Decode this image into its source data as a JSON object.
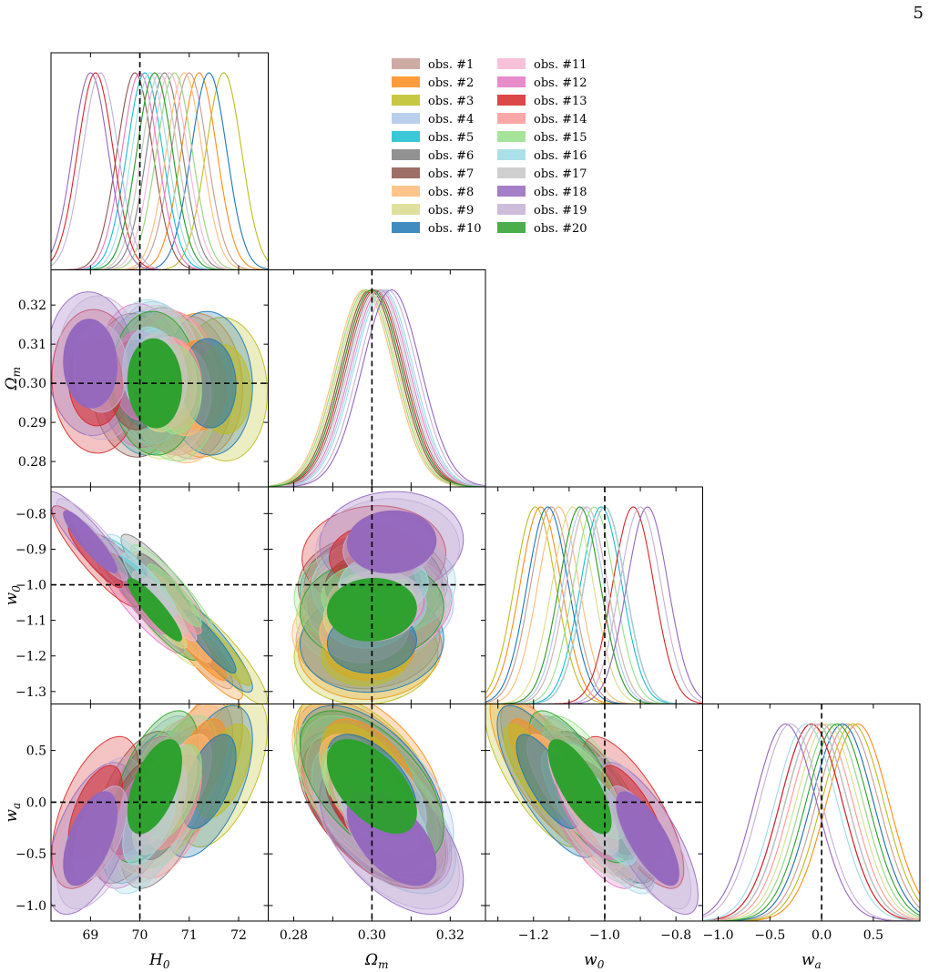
{
  "page_number": "5",
  "legend": {
    "placement": "top-center",
    "entries": [
      {
        "label": "obs. #1",
        "color": "#c49c94"
      },
      {
        "label": "obs. #2",
        "color": "#ff8c1a"
      },
      {
        "label": "obs. #3",
        "color": "#bcbd22"
      },
      {
        "label": "obs. #4",
        "color": "#aec7e8"
      },
      {
        "label": "obs. #5",
        "color": "#17becf"
      },
      {
        "label": "obs. #6",
        "color": "#7f7f7f"
      },
      {
        "label": "obs. #7",
        "color": "#8c564b"
      },
      {
        "label": "obs. #8",
        "color": "#ffbb78"
      },
      {
        "label": "obs. #9",
        "color": "#dbdb8d"
      },
      {
        "label": "obs. #10",
        "color": "#1f77b4"
      },
      {
        "label": "obs. #11",
        "color": "#f7b6d2"
      },
      {
        "label": "obs. #12",
        "color": "#e377c2"
      },
      {
        "label": "obs. #13",
        "color": "#d62728"
      },
      {
        "label": "obs. #14",
        "color": "#ff9896"
      },
      {
        "label": "obs. #15",
        "color": "#98df8a"
      },
      {
        "label": "obs. #16",
        "color": "#9edae5"
      },
      {
        "label": "obs. #17",
        "color": "#c7c7c7"
      },
      {
        "label": "obs. #18",
        "color": "#9467bd"
      },
      {
        "label": "obs. #19",
        "color": "#c5b0d5"
      },
      {
        "label": "obs. #20",
        "color": "#2ca02c"
      }
    ]
  },
  "chart_data": {
    "type": "corner",
    "parameters": [
      {
        "key": "H0",
        "label": "H",
        "sub": "0",
        "range": [
          68.2,
          72.6
        ],
        "ticks": [
          69,
          70,
          71,
          72
        ],
        "tick_labels": [
          "69",
          "70",
          "71",
          "72"
        ],
        "fiducial": 70
      },
      {
        "key": "Om",
        "label": "Ω",
        "sub": "m",
        "range": [
          0.2735,
          0.329
        ],
        "ticks": [
          0.28,
          0.29,
          0.3,
          0.31,
          0.32
        ],
        "tick_labels": [
          "0.28",
          "0.29",
          "0.30",
          "0.31",
          "0.32"
        ],
        "bottom_ticks": [
          0.28,
          0.3,
          0.32
        ],
        "bottom_tick_labels": [
          "0.28",
          "0.30",
          "0.32"
        ],
        "fiducial": 0.3
      },
      {
        "key": "w0",
        "label": "w",
        "sub": "0",
        "range": [
          -1.335,
          -0.725
        ],
        "ticks": [
          -1.3,
          -1.2,
          -1.1,
          -1.0,
          -0.9,
          -0.8
        ],
        "tick_labels": [
          "−1.3",
          "−1.2",
          "−1.1",
          "−1.0",
          "−0.9",
          "−0.8"
        ],
        "bottom_ticks": [
          -1.2,
          -1.0,
          -0.8
        ],
        "bottom_tick_labels": [
          "−1.2",
          "−1.0",
          "−0.8"
        ],
        "fiducial": -1.0
      },
      {
        "key": "wa",
        "label": "w",
        "sub": "a",
        "range": [
          -1.15,
          0.95
        ],
        "ticks": [
          -1.0,
          -0.5,
          0.0,
          0.5
        ],
        "tick_labels": [
          "−1.0",
          "−0.5",
          "0.0",
          "0.5"
        ],
        "fiducial": 0.0
      }
    ],
    "series": [
      {
        "name": "obs. #1",
        "mean": [
          71.0,
          0.299,
          -1.15,
          0.25
        ],
        "sigma": [
          0.36,
          0.0075,
          0.058,
          0.3
        ]
      },
      {
        "name": "obs. #2",
        "mean": [
          71.2,
          0.2995,
          -1.18,
          0.35
        ],
        "sigma": [
          0.36,
          0.0075,
          0.058,
          0.3
        ]
      },
      {
        "name": "obs. #3",
        "mean": [
          71.7,
          0.2985,
          -1.195,
          0.3
        ],
        "sigma": [
          0.36,
          0.0075,
          0.058,
          0.3
        ]
      },
      {
        "name": "obs. #4",
        "mean": [
          70.3,
          0.3025,
          -1.06,
          0.1
        ],
        "sigma": [
          0.36,
          0.0075,
          0.058,
          0.3
        ]
      },
      {
        "name": "obs. #5",
        "mean": [
          70.1,
          0.3,
          -1.01,
          -0.05
        ],
        "sigma": [
          0.36,
          0.0075,
          0.058,
          0.3
        ]
      },
      {
        "name": "obs. #6",
        "mean": [
          70.5,
          0.301,
          -1.0,
          -0.1
        ],
        "sigma": [
          0.36,
          0.0075,
          0.058,
          0.3
        ]
      },
      {
        "name": "obs. #7",
        "mean": [
          69.9,
          0.2995,
          -1.0,
          -0.05
        ],
        "sigma": [
          0.36,
          0.0075,
          0.058,
          0.3
        ]
      },
      {
        "name": "obs. #8",
        "mean": [
          70.9,
          0.298,
          -1.13,
          0.2
        ],
        "sigma": [
          0.36,
          0.0075,
          0.058,
          0.3
        ]
      },
      {
        "name": "obs. #9",
        "mean": [
          70.4,
          0.299,
          -1.09,
          0.05
        ],
        "sigma": [
          0.36,
          0.0075,
          0.058,
          0.3
        ]
      },
      {
        "name": "obs. #10",
        "mean": [
          71.4,
          0.3,
          -1.16,
          0.2
        ],
        "sigma": [
          0.36,
          0.0075,
          0.058,
          0.3
        ]
      },
      {
        "name": "obs. #11",
        "mean": [
          70.6,
          0.3005,
          -1.07,
          0.1
        ],
        "sigma": [
          0.36,
          0.0075,
          0.058,
          0.3
        ]
      },
      {
        "name": "obs. #12",
        "mean": [
          70.0,
          0.302,
          -1.05,
          -0.1
        ],
        "sigma": [
          0.36,
          0.0075,
          0.058,
          0.3
        ]
      },
      {
        "name": "obs. #13",
        "mean": [
          69.1,
          0.3005,
          -0.92,
          -0.1
        ],
        "sigma": [
          0.36,
          0.0075,
          0.058,
          0.3
        ]
      },
      {
        "name": "obs. #14",
        "mean": [
          70.7,
          0.3,
          -1.05,
          0.0
        ],
        "sigma": [
          0.36,
          0.0075,
          0.058,
          0.3
        ]
      },
      {
        "name": "obs. #15",
        "mean": [
          70.7,
          0.2985,
          -1.03,
          0.1
        ],
        "sigma": [
          0.36,
          0.0075,
          0.058,
          0.3
        ]
      },
      {
        "name": "obs. #16",
        "mean": [
          70.2,
          0.303,
          -1.0,
          -0.15
        ],
        "sigma": [
          0.36,
          0.0075,
          0.058,
          0.3
        ]
      },
      {
        "name": "obs. #17",
        "mean": [
          70.4,
          0.3015,
          -1.05,
          -0.05
        ],
        "sigma": [
          0.36,
          0.0075,
          0.058,
          0.3
        ]
      },
      {
        "name": "obs. #18",
        "mean": [
          69.0,
          0.305,
          -0.88,
          -0.35
        ],
        "sigma": [
          0.36,
          0.0075,
          0.058,
          0.3
        ]
      },
      {
        "name": "obs. #19",
        "mean": [
          69.2,
          0.304,
          -0.9,
          -0.3
        ],
        "sigma": [
          0.36,
          0.0075,
          0.058,
          0.3
        ]
      },
      {
        "name": "obs. #20",
        "mean": [
          70.3,
          0.3,
          -1.07,
          0.15
        ],
        "sigma": [
          0.36,
          0.0075,
          0.058,
          0.3
        ]
      }
    ],
    "correlations": {
      "H0-Om": -0.05,
      "H0-w0": -0.9,
      "H0-wa": 0.55,
      "Om-w0": 0.05,
      "Om-wa": -0.55,
      "w0-wa": -0.75
    },
    "fiducial_lines": "dashed black at H0=70, Ωm=0.30, w0=−1.0, wa=0.0",
    "grid": false
  }
}
